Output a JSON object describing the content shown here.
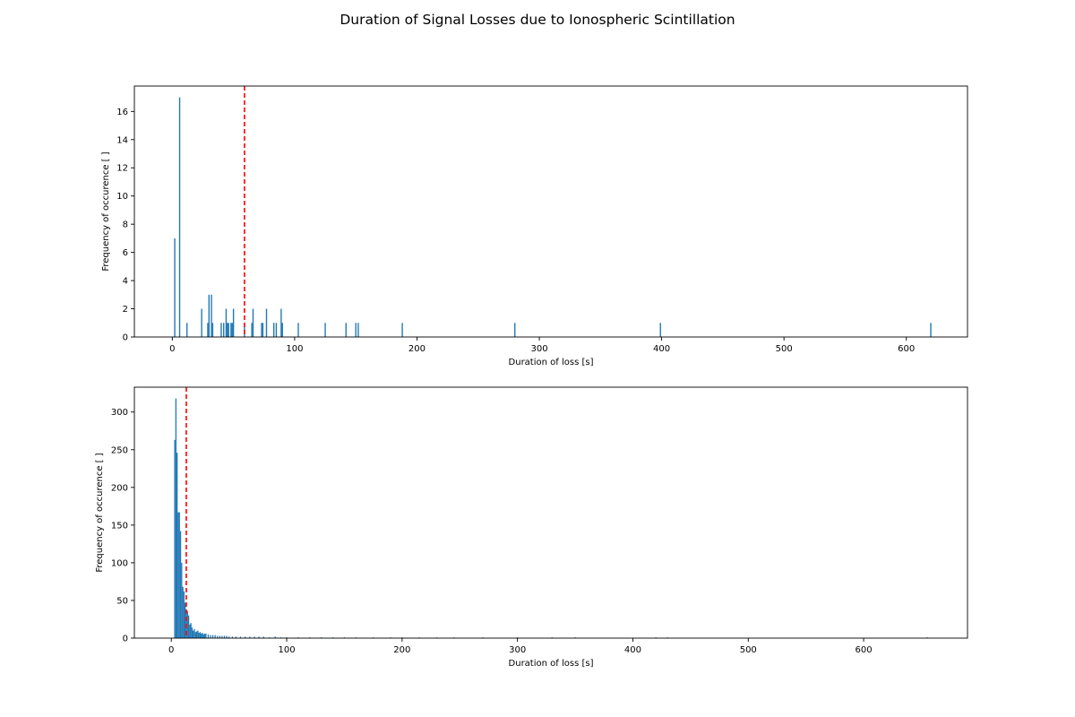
{
  "figure": {
    "title": "Duration of Signal Losses due to Ionospheric Scintillation"
  },
  "chart_data": [
    {
      "type": "bar",
      "xlabel": "Duration of loss [s]",
      "ylabel": "Frequency of occurence [ ]",
      "xlim": [
        -31,
        650
      ],
      "ylim": [
        0,
        17.8
      ],
      "xticks": [
        0,
        100,
        200,
        300,
        400,
        500,
        600
      ],
      "yticks": [
        0,
        2,
        4,
        6,
        8,
        10,
        12,
        14,
        16
      ],
      "bar_color": "#1f77b4",
      "bar_width": 1,
      "vline": {
        "x": 59,
        "color": "#ff0000",
        "style": "dashed"
      },
      "x": [
        2,
        6,
        12,
        24,
        29,
        30,
        32,
        33,
        40,
        42,
        44,
        45,
        46,
        48,
        49,
        50,
        59,
        65,
        66,
        73,
        74,
        77,
        83,
        85,
        89,
        90,
        103,
        125,
        142,
        150,
        152,
        188,
        280,
        399,
        620
      ],
      "values": [
        7,
        17,
        1,
        2,
        1,
        3,
        3,
        1,
        1,
        1,
        2,
        1,
        1,
        1,
        1,
        2,
        1,
        1,
        2,
        1,
        1,
        2,
        1,
        1,
        2,
        1,
        1,
        1,
        1,
        1,
        1,
        1,
        1,
        1,
        1
      ]
    },
    {
      "type": "bar",
      "xlabel": "Duration of loss [s]",
      "ylabel": "Frequency of occurence [ ]",
      "xlim": [
        -32,
        690
      ],
      "ylim": [
        0,
        333
      ],
      "xticks": [
        0,
        100,
        200,
        300,
        400,
        500,
        600
      ],
      "yticks": [
        0,
        50,
        100,
        150,
        200,
        250,
        300
      ],
      "bar_color": "#1f77b4",
      "bar_width": 1,
      "vline": {
        "x": 13,
        "color": "#ff0000",
        "style": "dashed"
      },
      "x": [
        3,
        4,
        5,
        6,
        7,
        8,
        9,
        10,
        11,
        12,
        13,
        14,
        15,
        16,
        17,
        18,
        19,
        20,
        21,
        22,
        23,
        24,
        25,
        26,
        27,
        28,
        29,
        30,
        32,
        34,
        36,
        38,
        40,
        42,
        44,
        46,
        48,
        50,
        53,
        56,
        60,
        64,
        68,
        72,
        76,
        80,
        85,
        90,
        95,
        100,
        110,
        120,
        130,
        140,
        150,
        160,
        175,
        190,
        200,
        215,
        230,
        245,
        270,
        300,
        330,
        350,
        420,
        430,
        655
      ],
      "values": [
        263,
        318,
        246,
        167,
        167,
        142,
        100,
        68,
        62,
        47,
        38,
        36,
        30,
        18,
        20,
        14,
        10,
        12,
        8,
        9,
        10,
        7,
        8,
        6,
        7,
        5,
        6,
        6,
        5,
        4,
        4,
        4,
        3,
        3,
        3,
        3,
        3,
        2,
        2,
        2,
        2,
        2,
        2,
        2,
        2,
        2,
        1,
        2,
        1,
        1,
        1,
        1,
        1,
        1,
        1,
        1,
        1,
        1,
        1,
        1,
        1,
        1,
        1,
        1,
        1,
        1,
        1,
        1,
        1
      ]
    }
  ]
}
